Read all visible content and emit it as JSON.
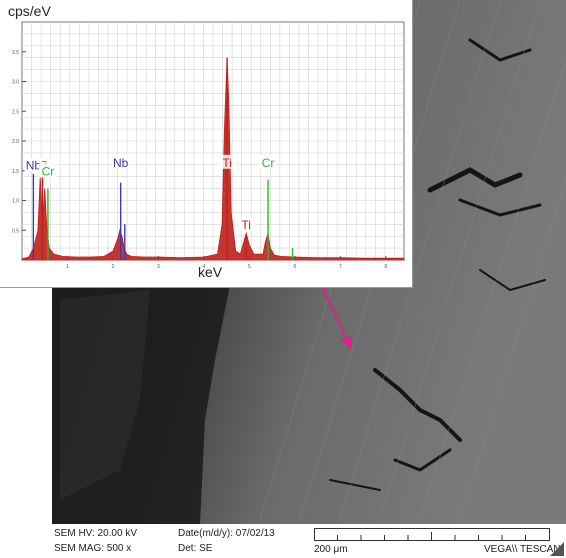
{
  "chart_data": {
    "type": "line",
    "ylabel": "cps/eV",
    "xlabel": "keV",
    "xlim": [
      0,
      8.4
    ],
    "ylim": [
      0,
      4.0
    ],
    "ytick_values": [
      0.5,
      1.0,
      1.5,
      2.0,
      2.5,
      3.0,
      3.5
    ],
    "xtick_values": [
      1,
      2,
      3,
      4,
      5,
      6,
      7,
      8
    ],
    "grid": true,
    "series": [
      {
        "name": "",
        "color": "#c0201a",
        "x": [
          0.0,
          0.15,
          0.25,
          0.35,
          0.4,
          0.45,
          0.5,
          0.55,
          0.6,
          0.7,
          0.9,
          1.2,
          1.5,
          1.8,
          2.0,
          2.1,
          2.15,
          2.2,
          2.25,
          2.3,
          2.4,
          2.7,
          3.0,
          3.5,
          4.0,
          4.3,
          4.4,
          4.45,
          4.51,
          4.55,
          4.6,
          4.7,
          4.8,
          4.93,
          5.0,
          5.1,
          5.3,
          5.35,
          5.41,
          5.46,
          5.55,
          5.7,
          6.0,
          6.5,
          7.0,
          7.5,
          8.0,
          8.4
        ],
        "y": [
          0.02,
          0.05,
          0.2,
          0.5,
          1.4,
          0.6,
          1.2,
          0.5,
          0.2,
          0.1,
          0.06,
          0.05,
          0.05,
          0.06,
          0.15,
          0.35,
          0.5,
          0.4,
          0.2,
          0.1,
          0.06,
          0.05,
          0.05,
          0.04,
          0.05,
          0.1,
          0.6,
          2.2,
          3.4,
          2.6,
          0.8,
          0.15,
          0.1,
          0.45,
          0.25,
          0.1,
          0.1,
          0.3,
          0.45,
          0.2,
          0.08,
          0.06,
          0.05,
          0.04,
          0.04,
          0.03,
          0.03,
          0.03
        ]
      }
    ],
    "peak_labels": [
      {
        "text": "Ti",
        "element": "Ti",
        "kev": 0.45,
        "value": 1.45
      },
      {
        "text": "Nb",
        "element": "Nb",
        "kev": 0.25,
        "value": 1.45
      },
      {
        "text": "Cr",
        "element": "Cr",
        "kev": 0.57,
        "value": 1.35
      },
      {
        "text": "Nb",
        "element": "Nb",
        "kev": 2.17,
        "value": 1.5
      },
      {
        "text": "Ti",
        "element": "Ti",
        "kev": 4.51,
        "value": 1.5
      },
      {
        "text": "Ti",
        "element": "Ti",
        "kev": 4.93,
        "value": 0.45
      },
      {
        "text": "Cr",
        "element": "Cr",
        "kev": 5.41,
        "value": 1.5
      }
    ],
    "element_lines": [
      {
        "element": "Nb",
        "kev": 0.25,
        "height": 1.45
      },
      {
        "element": "Ti",
        "kev": 0.45,
        "height": 1.45
      },
      {
        "element": "Cr",
        "kev": 0.57,
        "height": 1.2
      },
      {
        "element": "Nb",
        "kev": 2.17,
        "height": 1.3
      },
      {
        "element": "Nb",
        "kev": 2.26,
        "height": 0.6
      },
      {
        "element": "Ti",
        "kev": 4.51,
        "height": 3.4
      },
      {
        "element": "Ti",
        "kev": 4.93,
        "height": 0.4
      },
      {
        "element": "Cr",
        "kev": 5.41,
        "height": 1.35
      },
      {
        "element": "Cr",
        "kev": 5.95,
        "height": 0.2
      }
    ],
    "element_colors": {
      "Ti": "#c0201a",
      "Nb": "#3a3ab0",
      "Cr": "#2db52d"
    }
  },
  "sem_info": {
    "hv": "SEM HV: 20.00 kV",
    "mag": "SEM MAG: 500 x",
    "date": "Date(m/d/y): 07/02/13",
    "det": "Det: SE",
    "scale": "200 μm",
    "brand": "VEGA\\\\ TESCAN"
  },
  "colors": {
    "arrow": "#e0208a"
  }
}
